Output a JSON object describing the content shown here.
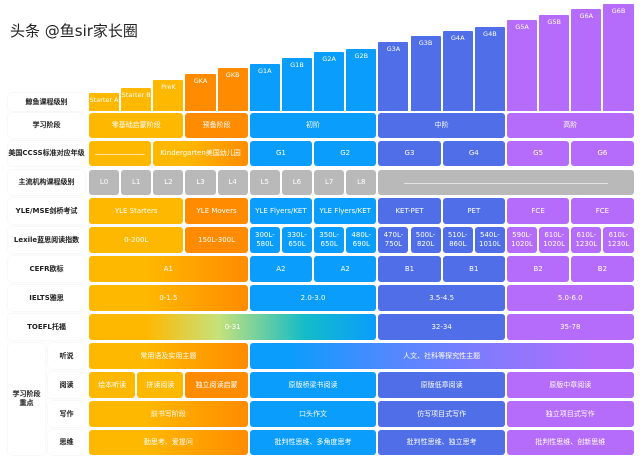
{
  "palette": {
    "yellow": "#ffb800",
    "orange": "#ff8c00",
    "blue": "#0a9dfc",
    "indigo": "#4f6ee8",
    "purple": "#b56cfb",
    "gray": "#b9b9b9"
  },
  "levels": [
    "Starter A",
    "Starter B",
    "PreK",
    "GKA",
    "GKB",
    "G1A",
    "G1B",
    "G2A",
    "G2B",
    "G3A",
    "G3B",
    "G4A",
    "G4B",
    "G5A",
    "G5B",
    "G6A",
    "G6B"
  ],
  "level_colors": [
    "yellow",
    "yellow",
    "yellow",
    "orange",
    "orange",
    "blue",
    "blue",
    "blue",
    "blue",
    "indigo",
    "indigo",
    "indigo",
    "indigo",
    "purple",
    "purple",
    "purple",
    "purple"
  ],
  "row_labels": [
    "鲸鱼课程级别",
    "学习阶段",
    "美国CCSS标准对应年级",
    "主流机构课程级别",
    "YLE/MSE剑桥考试",
    "Lexile蓝思阅读指数",
    "CEFR欧标",
    "IELTS雅思",
    "TOEFL托福"
  ],
  "focus_group_label": "学习阶段\n重点",
  "focus_labels": [
    "听说",
    "阅读",
    "写作",
    "思维"
  ],
  "rows": [
    [],
    [
      {
        "s": 0,
        "n": 3,
        "t": "零基础启蒙阶段",
        "f": "yellow"
      },
      {
        "s": 3,
        "n": 2,
        "t": "预备阶段",
        "f": "orange"
      },
      {
        "s": 5,
        "n": 4,
        "t": "初阶",
        "f": "blue"
      },
      {
        "s": 9,
        "n": 4,
        "t": "中阶",
        "f": "indigo"
      },
      {
        "s": 13,
        "n": 4,
        "t": "高阶",
        "f": "purple"
      }
    ],
    [
      {
        "s": 0,
        "n": 2,
        "t": "",
        "f": "yellow",
        "line": true
      },
      {
        "s": 2,
        "n": 3,
        "t": "Kindergarten美国幼儿园",
        "f": "yo"
      },
      {
        "s": 5,
        "n": 2,
        "t": "G1",
        "f": "blue"
      },
      {
        "s": 7,
        "n": 2,
        "t": "G2",
        "f": "blue"
      },
      {
        "s": 9,
        "n": 2,
        "t": "G3",
        "f": "indigo"
      },
      {
        "s": 11,
        "n": 2,
        "t": "G4",
        "f": "indigo"
      },
      {
        "s": 13,
        "n": 2,
        "t": "G5",
        "f": "purple"
      },
      {
        "s": 15,
        "n": 2,
        "t": "G6",
        "f": "purple"
      }
    ],
    [
      {
        "s": 0,
        "n": 1,
        "t": "L0",
        "f": "gray"
      },
      {
        "s": 1,
        "n": 1,
        "t": "L1",
        "f": "gray"
      },
      {
        "s": 2,
        "n": 1,
        "t": "L2",
        "f": "gray"
      },
      {
        "s": 3,
        "n": 1,
        "t": "L3",
        "f": "gray"
      },
      {
        "s": 4,
        "n": 1,
        "t": "L4",
        "f": "gray"
      },
      {
        "s": 5,
        "n": 1,
        "t": "L5",
        "f": "gray"
      },
      {
        "s": 6,
        "n": 1,
        "t": "L6",
        "f": "gray"
      },
      {
        "s": 7,
        "n": 1,
        "t": "L7",
        "f": "gray"
      },
      {
        "s": 8,
        "n": 1,
        "t": "L8",
        "f": "gray"
      },
      {
        "s": 9,
        "n": 8,
        "t": "",
        "f": "gray",
        "line": true
      }
    ],
    [
      {
        "s": 0,
        "n": 3,
        "t": "YLE Starters",
        "f": "yellow"
      },
      {
        "s": 3,
        "n": 2,
        "t": "YLE Movers",
        "f": "orange"
      },
      {
        "s": 5,
        "n": 2,
        "t": "YLE Flyers/KET",
        "f": "blue"
      },
      {
        "s": 7,
        "n": 2,
        "t": "YLE Flyers/KET",
        "f": "blue"
      },
      {
        "s": 9,
        "n": 2,
        "t": "KET-PET",
        "f": "indigo"
      },
      {
        "s": 11,
        "n": 2,
        "t": "PET",
        "f": "indigo"
      },
      {
        "s": 13,
        "n": 2,
        "t": "FCE",
        "f": "purple"
      },
      {
        "s": 15,
        "n": 2,
        "t": "FCE",
        "f": "purple"
      }
    ],
    [
      {
        "s": 0,
        "n": 3,
        "t": "0-200L",
        "f": "yellow"
      },
      {
        "s": 3,
        "n": 2,
        "t": "150L-300L",
        "f": "orange"
      },
      {
        "s": 5,
        "n": 1,
        "t": "300L-\n580L",
        "f": "blue"
      },
      {
        "s": 6,
        "n": 1,
        "t": "330L-\n650L",
        "f": "blue"
      },
      {
        "s": 7,
        "n": 1,
        "t": "350L-\n650L",
        "f": "blue"
      },
      {
        "s": 8,
        "n": 1,
        "t": "480L-\n690L",
        "f": "blue"
      },
      {
        "s": 9,
        "n": 1,
        "t": "470L-\n750L",
        "f": "indigo"
      },
      {
        "s": 10,
        "n": 1,
        "t": "500L-\n820L",
        "f": "indigo"
      },
      {
        "s": 11,
        "n": 1,
        "t": "510L-\n860L",
        "f": "indigo"
      },
      {
        "s": 12,
        "n": 1,
        "t": "540L-\n1010L",
        "f": "indigo"
      },
      {
        "s": 13,
        "n": 1,
        "t": "590L-\n1020L",
        "f": "purple"
      },
      {
        "s": 14,
        "n": 1,
        "t": "610L-\n1020L",
        "f": "purple"
      },
      {
        "s": 15,
        "n": 1,
        "t": "610L-\n1230L",
        "f": "purple"
      },
      {
        "s": 16,
        "n": 1,
        "t": "610L-\n1230L",
        "f": "purple"
      }
    ],
    [
      {
        "s": 0,
        "n": 5,
        "t": "A1",
        "f": "yo"
      },
      {
        "s": 5,
        "n": 2,
        "t": "A2",
        "f": "blue"
      },
      {
        "s": 7,
        "n": 2,
        "t": "A2",
        "f": "blue"
      },
      {
        "s": 9,
        "n": 2,
        "t": "B1",
        "f": "indigo"
      },
      {
        "s": 11,
        "n": 2,
        "t": "B1",
        "f": "indigo"
      },
      {
        "s": 13,
        "n": 2,
        "t": "B2",
        "f": "purple"
      },
      {
        "s": 15,
        "n": 2,
        "t": "B2",
        "f": "purple"
      }
    ],
    [
      {
        "s": 0,
        "n": 5,
        "t": "0-1.5",
        "f": "yo"
      },
      {
        "s": 5,
        "n": 4,
        "t": "2.0-3.0",
        "f": "blue"
      },
      {
        "s": 9,
        "n": 4,
        "t": "3.5-4.5",
        "f": "indigo"
      },
      {
        "s": 13,
        "n": 4,
        "t": "5.0-6.0",
        "f": "purple"
      }
    ],
    [
      {
        "s": 0,
        "n": 9,
        "t": "0-31",
        "f": "ygb"
      },
      {
        "s": 9,
        "n": 4,
        "t": "32-34",
        "f": "indigo"
      },
      {
        "s": 13,
        "n": 4,
        "t": "35-78",
        "f": "purple"
      }
    ],
    [
      {
        "s": 0,
        "n": 5,
        "t": "常用语及实用主题",
        "f": "yo"
      },
      {
        "s": 5,
        "n": 12,
        "t": "人文、社科等探究性主题",
        "f": "bip"
      }
    ],
    [
      {
        "s": 0,
        "n": 1.5,
        "t": "绘本听读",
        "f": "yellow"
      },
      {
        "s": 1.5,
        "n": 1.5,
        "t": "拼读阅读",
        "f": "yellow"
      },
      {
        "s": 3,
        "n": 2,
        "t": "独立阅读启蒙",
        "f": "orange"
      },
      {
        "s": 5,
        "n": 4,
        "t": "原版桥梁书阅读",
        "f": "blue"
      },
      {
        "s": 9,
        "n": 4,
        "t": "原版低章阅读",
        "f": "indigo"
      },
      {
        "s": 13,
        "n": 4,
        "t": "原版中章阅读",
        "f": "purple"
      }
    ],
    [
      {
        "s": 0,
        "n": 5,
        "t": "前书写阶段",
        "f": "yo"
      },
      {
        "s": 5,
        "n": 4,
        "t": "口头作文",
        "f": "blue"
      },
      {
        "s": 9,
        "n": 4,
        "t": "仿写项目式写作",
        "f": "indigo"
      },
      {
        "s": 13,
        "n": 4,
        "t": "独立项目式写作",
        "f": "purple"
      }
    ],
    [
      {
        "s": 0,
        "n": 5,
        "t": "勤思考、爱提问",
        "f": "yo"
      },
      {
        "s": 5,
        "n": 4,
        "t": "批判性思维、多角度思考",
        "f": "blue"
      },
      {
        "s": 9,
        "n": 4,
        "t": "批判性思维、独立思考",
        "f": "indigo"
      },
      {
        "s": 13,
        "n": 4,
        "t": "批判性思维、创新思维",
        "f": "purple"
      }
    ]
  ],
  "watermark": "头条 @鱼sir家长圈"
}
